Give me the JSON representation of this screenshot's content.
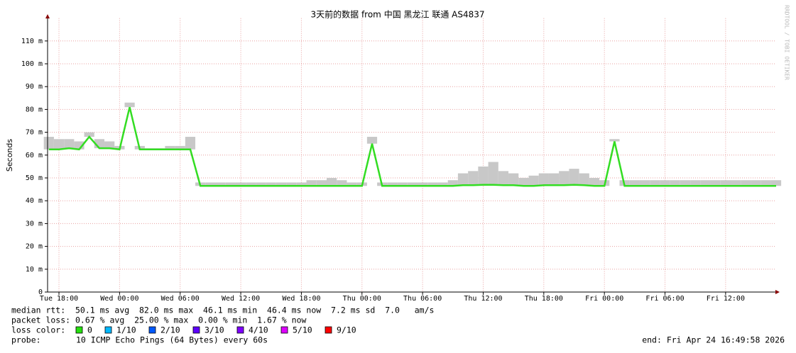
{
  "chart_data": {
    "type": "line",
    "title": "3天前的数据 from  中国 黑龙江 联通 AS4837",
    "y_label": "Seconds",
    "watermark": "RRDTOOL / TOBI OETIKER",
    "x": [
      "Tue 17:00",
      "Tue 18:00",
      "Tue 19:00",
      "Tue 20:00",
      "Tue 21:00",
      "Tue 22:00",
      "Tue 23:00",
      "Wed 00:00",
      "Wed 01:00",
      "Wed 02:00",
      "Wed 03:00",
      "Wed 04:00",
      "Wed 05:00",
      "Wed 06:00",
      "Wed 07:00",
      "Wed 08:00",
      "Wed 09:00",
      "Wed 10:00",
      "Wed 11:00",
      "Wed 12:00",
      "Wed 13:00",
      "Wed 14:00",
      "Wed 15:00",
      "Wed 16:00",
      "Wed 17:00",
      "Wed 18:00",
      "Wed 19:00",
      "Wed 20:00",
      "Wed 21:00",
      "Wed 22:00",
      "Wed 23:00",
      "Thu 00:00",
      "Thu 01:00",
      "Thu 02:00",
      "Thu 03:00",
      "Thu 04:00",
      "Thu 05:00",
      "Thu 06:00",
      "Thu 07:00",
      "Thu 08:00",
      "Thu 09:00",
      "Thu 10:00",
      "Thu 11:00",
      "Thu 12:00",
      "Thu 13:00",
      "Thu 14:00",
      "Thu 15:00",
      "Thu 16:00",
      "Thu 17:00",
      "Thu 18:00",
      "Thu 19:00",
      "Thu 20:00",
      "Thu 21:00",
      "Thu 22:00",
      "Thu 23:00",
      "Fri 00:00",
      "Fri 01:00",
      "Fri 02:00",
      "Fri 03:00",
      "Fri 04:00",
      "Fri 05:00",
      "Fri 06:00",
      "Fri 07:00",
      "Fri 08:00",
      "Fri 09:00",
      "Fri 10:00",
      "Fri 11:00",
      "Fri 12:00",
      "Fri 13:00",
      "Fri 14:00",
      "Fri 15:00",
      "Fri 16:00",
      "Fri 17:00"
    ],
    "series": [
      {
        "color": "#33dd22",
        "values": [
          62.5,
          62.5,
          63,
          62.5,
          68,
          63,
          63,
          62.5,
          81,
          62.5,
          62.5,
          62.5,
          62.5,
          62.5,
          62.5,
          46.5,
          46.5,
          46.5,
          46.5,
          46.5,
          46.5,
          46.5,
          46.5,
          46.5,
          46.5,
          46.5,
          46.5,
          46.5,
          46.5,
          46.5,
          46.5,
          46.5,
          65,
          46.5,
          46.5,
          46.5,
          46.5,
          46.5,
          46.5,
          46.5,
          46.5,
          46.8,
          46.8,
          47,
          47,
          46.8,
          46.8,
          46.5,
          46.5,
          46.8,
          46.8,
          46.8,
          47,
          46.8,
          46.5,
          46.5,
          66,
          46.5,
          46.5,
          46.5,
          46.5,
          46.5,
          46.5,
          46.5,
          46.5,
          46.5,
          46.5,
          46.5,
          46.5,
          46.5,
          46.5,
          46.5,
          46.5
        ],
        "smoke": [
          68,
          67,
          67,
          66,
          70,
          67,
          66,
          64,
          83,
          64,
          63,
          63,
          64,
          64,
          68,
          48,
          48,
          48,
          48,
          48,
          48,
          48,
          48,
          48,
          48,
          48,
          49,
          49,
          50,
          49,
          48,
          48,
          68,
          48,
          48,
          48,
          48,
          48,
          48,
          48,
          49,
          52,
          53,
          55,
          57,
          53,
          52,
          50,
          51,
          52,
          52,
          53,
          54,
          52,
          50,
          49,
          67,
          49,
          49,
          49,
          49,
          49,
          49,
          49,
          49,
          49,
          49,
          49,
          49,
          49,
          49,
          49,
          49
        ]
      }
    ],
    "ylim": [
      0,
      120
    ],
    "yticks": [
      0,
      {
        "value": 10,
        "label": "10 m"
      },
      {
        "value": 20,
        "label": "20 m"
      },
      {
        "value": 30,
        "label": "30 m"
      },
      {
        "value": 40,
        "label": "40 m"
      },
      {
        "value": 50,
        "label": "50 m"
      },
      {
        "value": 60,
        "label": "60 m"
      },
      {
        "value": 70,
        "label": "70 m"
      },
      {
        "value": 80,
        "label": "80 m"
      },
      {
        "value": 90,
        "label": "90 m"
      },
      {
        "value": 100,
        "label": "100 m"
      },
      {
        "value": 110,
        "label": "110 m"
      }
    ],
    "xticks": [
      "Tue 18:00",
      "Wed 00:00",
      "Wed 06:00",
      "Wed 12:00",
      "Wed 18:00",
      "Thu 00:00",
      "Thu 06:00",
      "Thu 12:00",
      "Thu 18:00",
      "Fri 00:00",
      "Fri 06:00",
      "Fri 12:00"
    ],
    "grid": true,
    "stats": {
      "median_rtt": "median rtt:  50.1 ms avg  82.0 ms max  46.1 ms min  46.4 ms now  7.2 ms sd  7.0   am/s",
      "packet_loss": "packet loss: 0.67 % avg  25.00 % max  0.00 % min  1.67 % now",
      "loss_color_label": "loss color:",
      "loss_colors": [
        {
          "label": "0",
          "color": "#26e00f"
        },
        {
          "label": "1/10",
          "color": "#00b8ff"
        },
        {
          "label": "2/10",
          "color": "#0059ff"
        },
        {
          "label": "3/10",
          "color": "#5e00ff"
        },
        {
          "label": "4/10",
          "color": "#7e00ff"
        },
        {
          "label": "5/10",
          "color": "#dd00ff"
        },
        {
          "label": "9/10",
          "color": "#ff0000"
        }
      ],
      "probe_label": "probe:",
      "probe": "10 ICMP Echo Pings (64 Bytes) every 60s",
      "end": "end: Fri Apr 24 16:49:58 2026"
    }
  }
}
